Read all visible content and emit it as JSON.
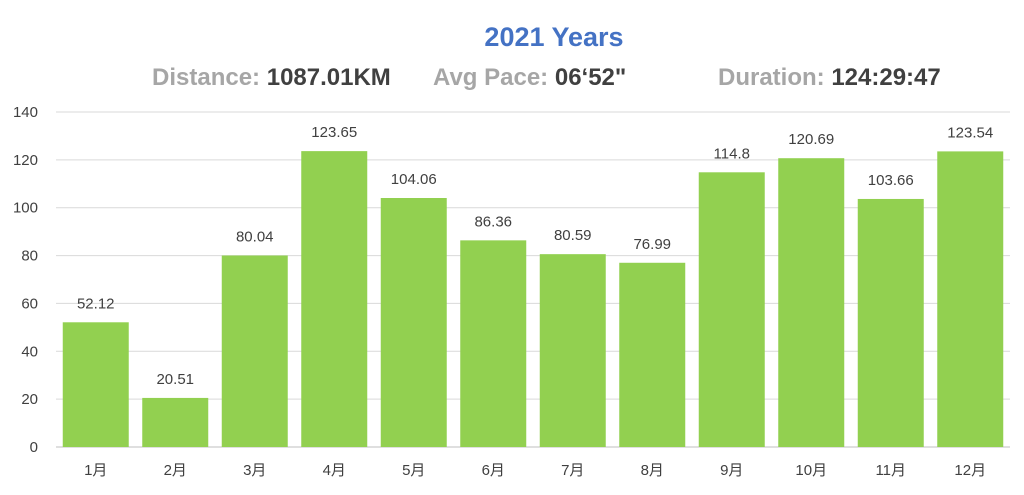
{
  "header": {
    "title": "2021 Years",
    "stats": [
      {
        "label": "Distance:",
        "value": "1087.01KM"
      },
      {
        "label": "Avg Pace:",
        "value": "06‘52\""
      },
      {
        "label": "Duration:",
        "value": "124:29:47"
      }
    ]
  },
  "colors": {
    "bar": "#92d050",
    "title": "#4472c4",
    "stat_label": "#a6a6a6",
    "stat_value": "#404040",
    "grid": "#d9d9d9",
    "text": "#404040"
  },
  "chart_data": {
    "type": "bar",
    "categories": [
      "1月",
      "2月",
      "3月",
      "4月",
      "5月",
      "6月",
      "7月",
      "8月",
      "9月",
      "10月",
      "11月",
      "12月"
    ],
    "values": [
      52.12,
      20.51,
      80.04,
      123.65,
      104.06,
      86.36,
      80.59,
      76.99,
      114.8,
      120.69,
      103.66,
      123.54
    ],
    "value_labels": [
      "52.12",
      "20.51",
      "80.04",
      "123.65",
      "104.06",
      "86.36",
      "80.59",
      "76.99",
      "114.8",
      "120.69",
      "103.66",
      "123.54"
    ],
    "yticks": [
      0,
      20,
      40,
      60,
      80,
      100,
      120,
      140
    ],
    "ylim": [
      0,
      140
    ],
    "grid": true,
    "legend": "none",
    "title": "2021 Years",
    "xlabel": "",
    "ylabel": ""
  }
}
